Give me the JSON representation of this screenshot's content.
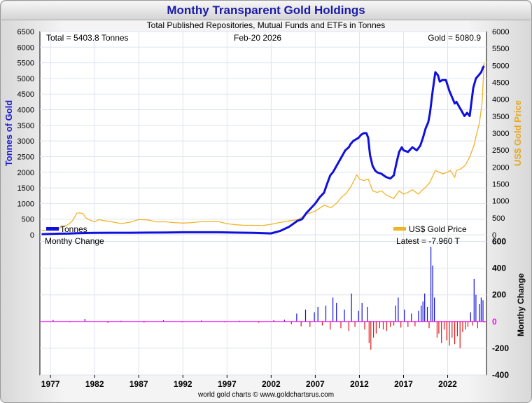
{
  "title": "Monthy Transparent Gold Holdings",
  "subtitle": "Total Published Repositories, Mutual Funds and ETFs in Tonnes",
  "footer": "world gold charts © www.goldchartsrus.com",
  "colors": {
    "tonnes": "#1010dd",
    "gold_price": "#f0b428",
    "pos_change": "#1010dd",
    "neg_change": "#e01818",
    "zero_line": "#ff00ff",
    "title": "#1a1aa8"
  },
  "chart_data": [
    {
      "type": "line",
      "title": "Monthy Transparent Gold Holdings",
      "subtitle": "Total Published Repositories, Mutual Funds and ETFs in Tonnes",
      "ylabel": "Tonnes of Gold",
      "y2label": "US$ Gold Price",
      "ylim": [
        0,
        6500
      ],
      "y2lim": [
        0,
        6000
      ],
      "yticks": [
        "0",
        "500",
        "1000",
        "1500",
        "2000",
        "2500",
        "3000",
        "3500",
        "4000",
        "4500",
        "5000",
        "5500",
        "6000",
        "6500"
      ],
      "y2ticks": [
        "0",
        "500",
        "1000",
        "1500",
        "2000",
        "2500",
        "3000",
        "3500",
        "4000",
        "4500",
        "5000",
        "5500",
        "6000"
      ],
      "annotations": {
        "total": "Total = 5403.8 Tonnes",
        "date": "Feb-20  2026",
        "gold": "Gold = 5080.9"
      },
      "legend": {
        "tonnes": "Tonnes",
        "gold_price": "US$ Gold Price"
      },
      "series": [
        {
          "name": "Tonnes",
          "axis": "left",
          "x": [
            1976.0,
            1977.0,
            1978.0,
            1979.0,
            1980.0,
            1981.0,
            1982.0,
            1984.0,
            1986.0,
            1988.0,
            1990.0,
            1992.0,
            1994.0,
            1996.0,
            1998.0,
            2000.0,
            2002.0,
            2003.0,
            2004.0,
            2004.5,
            2005.0,
            2005.5,
            2006.0,
            2006.5,
            2007.0,
            2007.5,
            2008.0,
            2008.3,
            2008.7,
            2009.0,
            2009.3,
            2009.6,
            2010.0,
            2010.4,
            2010.8,
            2011.0,
            2011.3,
            2011.6,
            2011.9,
            2012.2,
            2012.5,
            2012.8,
            2013.0,
            2013.2,
            2013.5,
            2013.8,
            2014.0,
            2014.5,
            2015.0,
            2015.5,
            2015.9,
            2016.2,
            2016.5,
            2016.8,
            2017.0,
            2017.5,
            2018.0,
            2018.5,
            2018.9,
            2019.2,
            2019.5,
            2019.8,
            2020.0,
            2020.3,
            2020.6,
            2020.9,
            2021.1,
            2021.4,
            2021.8,
            2022.2,
            2022.5,
            2022.8,
            2023.0,
            2023.3,
            2023.6,
            2023.9,
            2024.2,
            2024.5,
            2024.9,
            2025.2,
            2025.5,
            2025.8,
            2026.0,
            2026.13
          ],
          "values": [
            20,
            30,
            35,
            40,
            50,
            55,
            60,
            65,
            65,
            70,
            75,
            80,
            80,
            80,
            70,
            60,
            45,
            120,
            250,
            350,
            450,
            500,
            700,
            850,
            1000,
            1200,
            1350,
            1600,
            1900,
            2000,
            2150,
            2300,
            2500,
            2700,
            2800,
            2900,
            3000,
            3050,
            3100,
            3200,
            3250,
            3250,
            3100,
            2550,
            2200,
            2050,
            2000,
            1950,
            1850,
            1800,
            1900,
            2300,
            2650,
            2800,
            2700,
            2650,
            2800,
            2700,
            2850,
            3100,
            3400,
            3600,
            3900,
            4600,
            5200,
            5100,
            4900,
            4950,
            4950,
            4600,
            4400,
            4200,
            4250,
            4100,
            3950,
            3800,
            3900,
            3800,
            4700,
            5000,
            5100,
            5200,
            5350,
            5400
          ]
        },
        {
          "name": "US$ Gold Price",
          "axis": "right",
          "x": [
            1976.0,
            1977.0,
            1978.0,
            1979.0,
            1979.5,
            1980.0,
            1980.3,
            1980.7,
            1981.0,
            1981.5,
            1982.0,
            1982.5,
            1983.0,
            1984.0,
            1985.0,
            1986.0,
            1987.0,
            1988.0,
            1989.0,
            1990.0,
            1991.0,
            1992.0,
            1993.0,
            1994.0,
            1995.0,
            1996.0,
            1997.0,
            1998.0,
            1999.0,
            2000.0,
            2001.0,
            2002.0,
            2003.0,
            2004.0,
            2005.0,
            2006.0,
            2007.0,
            2008.0,
            2008.8,
            2009.5,
            2010.0,
            2010.5,
            2011.0,
            2011.7,
            2012.0,
            2012.5,
            2013.0,
            2013.5,
            2014.0,
            2014.5,
            2015.0,
            2015.9,
            2016.5,
            2017.0,
            2017.5,
            2018.0,
            2018.7,
            2019.0,
            2019.5,
            2020.0,
            2020.6,
            2021.0,
            2021.5,
            2022.0,
            2022.3,
            2022.8,
            2023.0,
            2023.5,
            2024.0,
            2024.5,
            2025.0,
            2025.3,
            2025.6,
            2025.9,
            2026.13
          ],
          "values": [
            125,
            150,
            195,
            300,
            420,
            640,
            650,
            620,
            500,
            430,
            380,
            450,
            420,
            380,
            330,
            370,
            450,
            440,
            380,
            385,
            360,
            345,
            360,
            385,
            385,
            390,
            330,
            295,
            280,
            280,
            270,
            310,
            365,
            410,
            445,
            605,
            700,
            870,
            800,
            950,
            1120,
            1220,
            1400,
            1770,
            1650,
            1600,
            1650,
            1300,
            1250,
            1300,
            1180,
            1070,
            1300,
            1200,
            1250,
            1330,
            1200,
            1290,
            1400,
            1550,
            1900,
            1850,
            1800,
            1850,
            1900,
            1700,
            1900,
            1950,
            2050,
            2300,
            2650,
            3000,
            3300,
            3900,
            5080
          ]
        }
      ]
    },
    {
      "type": "bar",
      "title": "Monthy Change",
      "ylabel": "Monthy Change",
      "latest": "Latest = -7.960 T",
      "ylim": [
        -400,
        650
      ],
      "yticks": [
        "-400",
        "-200",
        "0",
        "200",
        "400",
        "600"
      ],
      "xticks": [
        "1977",
        "1982",
        "1987",
        "1992",
        "1997",
        "2002",
        "2007",
        "2012",
        "2017",
        "2022"
      ],
      "xtick_values": [
        1977,
        1982,
        1987,
        1992,
        1997,
        2002,
        2007,
        2012,
        2017,
        2022
      ],
      "xlim": [
        1975.8,
        2026.4
      ],
      "x": [
        1977.3,
        1979.2,
        1980.9,
        1983.5,
        1985.0,
        1987.6,
        1989.8,
        1991.9,
        1994.1,
        1996.7,
        1998.4,
        2000.6,
        2002.3,
        2003.5,
        2004.3,
        2004.9,
        2005.4,
        2005.9,
        2006.4,
        2006.9,
        2007.3,
        2007.8,
        2008.2,
        2008.7,
        2009.0,
        2009.4,
        2009.9,
        2010.3,
        2010.8,
        2011.1,
        2011.5,
        2011.9,
        2012.3,
        2012.6,
        2012.9,
        2013.1,
        2013.3,
        2013.6,
        2013.9,
        2014.3,
        2014.7,
        2015.1,
        2015.5,
        2015.9,
        2016.1,
        2016.4,
        2016.7,
        2017.1,
        2017.5,
        2017.9,
        2018.3,
        2018.7,
        2019.0,
        2019.2,
        2019.4,
        2019.7,
        2019.9,
        2020.1,
        2020.3,
        2020.5,
        2020.8,
        2021.0,
        2021.3,
        2021.6,
        2021.9,
        2022.2,
        2022.5,
        2022.8,
        2023.1,
        2023.4,
        2023.7,
        2024.0,
        2024.3,
        2024.6,
        2024.8,
        2025.0,
        2025.2,
        2025.4,
        2025.6,
        2025.8,
        2026.0,
        2026.13
      ],
      "values": [
        12,
        -5,
        20,
        -10,
        6,
        -8,
        10,
        -6,
        8,
        -5,
        6,
        -9,
        10,
        15,
        -20,
        60,
        -35,
        90,
        -40,
        70,
        110,
        -30,
        120,
        -60,
        180,
        140,
        -50,
        90,
        -70,
        210,
        -40,
        80,
        140,
        -60,
        110,
        -160,
        -210,
        -120,
        -90,
        -50,
        -60,
        -70,
        -40,
        -30,
        120,
        180,
        -45,
        90,
        -40,
        60,
        -35,
        80,
        120,
        150,
        210,
        110,
        -50,
        560,
        420,
        180,
        -120,
        -90,
        -160,
        -60,
        -140,
        -180,
        -120,
        -170,
        -110,
        -200,
        -80,
        -60,
        -40,
        70,
        -30,
        320,
        200,
        -50,
        130,
        180,
        160,
        -8
      ]
    }
  ]
}
